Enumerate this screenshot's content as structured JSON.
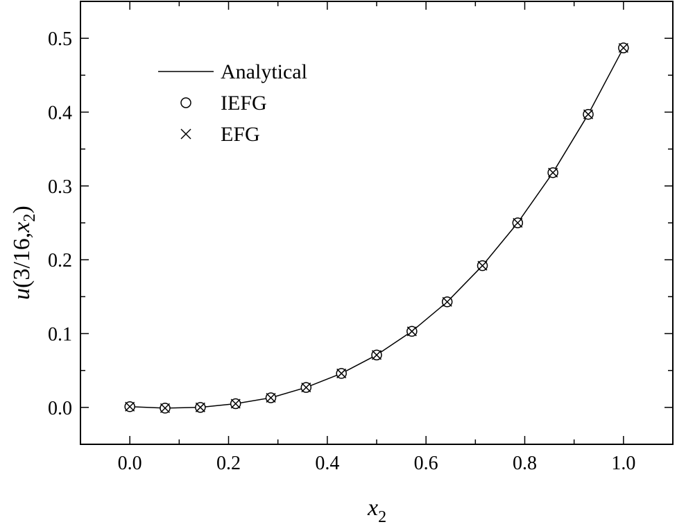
{
  "chart_data": {
    "type": "line",
    "xlabel": {
      "main": "x",
      "sub": "2"
    },
    "ylabel": {
      "prefix": "u",
      "open": "(3/16,",
      "var": "x",
      "sub": "2",
      "close": ")"
    },
    "xlim": [
      -0.1,
      1.1
    ],
    "ylim": [
      -0.05,
      0.55
    ],
    "xticks": [
      0.0,
      0.2,
      0.4,
      0.6,
      0.8,
      1.0
    ],
    "xtick_labels": [
      "0.0",
      "0.2",
      "0.4",
      "0.6",
      "0.8",
      "1.0"
    ],
    "yticks": [
      0.0,
      0.1,
      0.2,
      0.3,
      0.4,
      0.5
    ],
    "ytick_labels": [
      "0.0",
      "0.1",
      "0.2",
      "0.3",
      "0.4",
      "0.5"
    ],
    "grid": false,
    "legend_position": "top-left",
    "series": [
      {
        "name": "Analytical",
        "style": "line",
        "x": [
          0.0,
          0.0714,
          0.1429,
          0.2143,
          0.2857,
          0.3571,
          0.4286,
          0.5,
          0.5714,
          0.6429,
          0.7143,
          0.7857,
          0.8571,
          0.9286,
          1.0
        ],
        "y": [
          0.001,
          -0.001,
          0.0,
          0.005,
          0.013,
          0.027,
          0.046,
          0.071,
          0.103,
          0.143,
          0.192,
          0.25,
          0.318,
          0.397,
          0.487
        ]
      },
      {
        "name": "IEFG",
        "style": "circle",
        "x": [
          0.0,
          0.0714,
          0.1429,
          0.2143,
          0.2857,
          0.3571,
          0.4286,
          0.5,
          0.5714,
          0.6429,
          0.7143,
          0.7857,
          0.8571,
          0.9286,
          1.0
        ],
        "y": [
          0.001,
          -0.001,
          0.0,
          0.005,
          0.013,
          0.027,
          0.046,
          0.071,
          0.103,
          0.143,
          0.192,
          0.25,
          0.318,
          0.397,
          0.487
        ]
      },
      {
        "name": "EFG",
        "style": "cross",
        "x": [
          0.0,
          0.0714,
          0.1429,
          0.2143,
          0.2857,
          0.3571,
          0.4286,
          0.5,
          0.5714,
          0.6429,
          0.7143,
          0.7857,
          0.8571,
          0.9286,
          1.0
        ],
        "y": [
          0.001,
          -0.001,
          0.0,
          0.005,
          0.013,
          0.027,
          0.046,
          0.071,
          0.103,
          0.143,
          0.192,
          0.25,
          0.318,
          0.397,
          0.487
        ]
      }
    ]
  }
}
